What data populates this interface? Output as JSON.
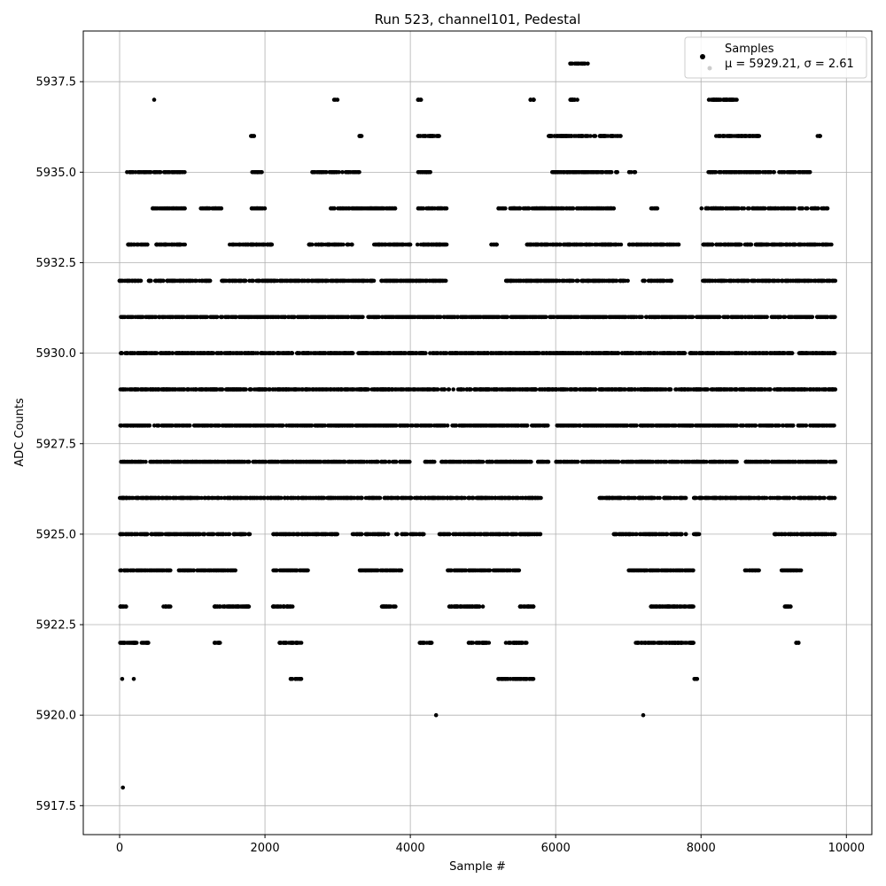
{
  "chart_data": {
    "type": "scatter",
    "title": "Run 523, channel101, Pedestal",
    "xlabel": "Sample #",
    "ylabel": "ADC Counts",
    "xlim": [
      -500,
      10350
    ],
    "ylim": [
      5916.7,
      5938.9
    ],
    "xticks": [
      0,
      2000,
      4000,
      6000,
      8000,
      10000
    ],
    "yticks": [
      5917.5,
      5920.0,
      5922.5,
      5925.0,
      5927.5,
      5930.0,
      5932.5,
      5935.0,
      5937.5
    ],
    "xtick_labels": [
      "0",
      "2000",
      "4000",
      "6000",
      "8000",
      "10000"
    ],
    "ytick_labels": [
      "5917.5",
      "5920.0",
      "5922.5",
      "5925.0",
      "5927.5",
      "5930.0",
      "5932.5",
      "5935.0",
      "5937.5"
    ],
    "grid": true,
    "legend": {
      "position": "top-right",
      "entries": [
        {
          "label": "Samples",
          "marker": "dot",
          "color": "#000000"
        },
        {
          "label": "μ = 5929.21, σ = 2.61",
          "marker": "none",
          "color": "#000000"
        }
      ]
    },
    "series": [
      {
        "name": "Samples",
        "color": "#000000",
        "points_summary": "approximately 10000 samples at integer ADC levels; listed below are representative runs per level",
        "level_runs": [
          {
            "y": 5931,
            "ranges": [
              [
                0,
                1000
              ],
              [
                1000,
                1500
              ],
              [
                1500,
                2600
              ],
              [
                2600,
                3000
              ],
              [
                3000,
                4600
              ],
              [
                4600,
                5800
              ],
              [
                5800,
                6800
              ],
              [
                6800,
                7100
              ],
              [
                7100,
                8100
              ],
              [
                8100,
                9850
              ]
            ]
          },
          {
            "y": 5930,
            "ranges": [
              [
                0,
                9850
              ]
            ]
          },
          {
            "y": 5929,
            "ranges": [
              [
                0,
                9850
              ]
            ]
          },
          {
            "y": 5928,
            "ranges": [
              [
                0,
                2900
              ],
              [
                2900,
                5900
              ],
              [
                6000,
                9850
              ]
            ]
          },
          {
            "y": 5927,
            "ranges": [
              [
                0,
                1800
              ],
              [
                1800,
                4000
              ],
              [
                4200,
                5900
              ],
              [
                6000,
                8500
              ],
              [
                8600,
                9850
              ]
            ]
          },
          {
            "y": 5926,
            "ranges": [
              [
                0,
                2100
              ],
              [
                2100,
                5800
              ],
              [
                6600,
                7800
              ],
              [
                7900,
                9850
              ]
            ]
          },
          {
            "y": 5932,
            "ranges": [
              [
                0,
                300
              ],
              [
                400,
                1250
              ],
              [
                1400,
                2500
              ],
              [
                2500,
                3500
              ],
              [
                3600,
                4500
              ],
              [
                5300,
                7000
              ],
              [
                7200,
                7600
              ],
              [
                8000,
                9850
              ]
            ]
          },
          {
            "y": 5925,
            "ranges": [
              [
                0,
                1800
              ],
              [
                2100,
                3000
              ],
              [
                3200,
                3700
              ],
              [
                3800,
                4200
              ],
              [
                4400,
                5800
              ],
              [
                6800,
                7800
              ],
              [
                7900,
                8000
              ],
              [
                9000,
                9850
              ]
            ]
          },
          {
            "y": 5933,
            "ranges": [
              [
                100,
                400
              ],
              [
                500,
                900
              ],
              [
                1500,
                2100
              ],
              [
                2600,
                3200
              ],
              [
                3500,
                4500
              ],
              [
                5100,
                5200
              ],
              [
                5600,
                6900
              ],
              [
                7000,
                7700
              ],
              [
                8000,
                9850
              ]
            ]
          },
          {
            "y": 5934,
            "ranges": [
              [
                450,
                900
              ],
              [
                1100,
                1400
              ],
              [
                1800,
                2000
              ],
              [
                2900,
                3800
              ],
              [
                4100,
                4500
              ],
              [
                5200,
                6800
              ],
              [
                7300,
                7400
              ],
              [
                8000,
                9750
              ]
            ]
          },
          {
            "y": 5924,
            "ranges": [
              [
                0,
                700
              ],
              [
                800,
                1600
              ],
              [
                2100,
                2600
              ],
              [
                3300,
                3900
              ],
              [
                4500,
                5500
              ],
              [
                7000,
                7900
              ],
              [
                8600,
                8800
              ],
              [
                9100,
                9400
              ]
            ]
          },
          {
            "y": 5923,
            "ranges": [
              [
                0,
                100
              ],
              [
                600,
                700
              ],
              [
                1300,
                1800
              ],
              [
                2100,
                2400
              ],
              [
                3600,
                3800
              ],
              [
                4500,
                5000
              ],
              [
                5500,
                5700
              ],
              [
                7300,
                7900
              ],
              [
                9150,
                9250
              ]
            ]
          },
          {
            "y": 5922,
            "ranges": [
              [
                0,
                400
              ],
              [
                1300,
                1400
              ],
              [
                2200,
                2500
              ],
              [
                4100,
                4300
              ],
              [
                4800,
                5100
              ],
              [
                5300,
                5600
              ],
              [
                7100,
                7900
              ],
              [
                9300,
                9350
              ]
            ]
          },
          {
            "y": 5935,
            "ranges": [
              [
                100,
                900
              ],
              [
                1800,
                2000
              ],
              [
                2650,
                3300
              ],
              [
                4100,
                4300
              ],
              [
                5950,
                6850
              ],
              [
                7000,
                7100
              ],
              [
                8100,
                9500
              ]
            ]
          },
          {
            "y": 5936,
            "ranges": [
              [
                1800,
                1850
              ],
              [
                3300,
                3350
              ],
              [
                4100,
                4400
              ],
              [
                5900,
                6900
              ],
              [
                8200,
                8800
              ],
              [
                9600,
                9650
              ]
            ]
          },
          {
            "y": 5937,
            "ranges": [
              [
                470,
                480
              ],
              [
                2950,
                3000
              ],
              [
                4100,
                4150
              ],
              [
                5650,
                5700
              ],
              [
                6200,
                6300
              ],
              [
                8100,
                8500
              ]
            ]
          },
          {
            "y": 5938,
            "ranges": [
              [
                6200,
                6450
              ]
            ]
          },
          {
            "y": 5921,
            "ranges": [
              [
                30,
                40
              ],
              [
                190,
                200
              ],
              [
                2350,
                2500
              ],
              [
                5200,
                5700
              ],
              [
                7900,
                7950
              ]
            ]
          },
          {
            "y": 5920,
            "ranges": [
              [
                4350,
                4360
              ],
              [
                7200,
                7210
              ]
            ]
          },
          {
            "y": 5918,
            "ranges": [
              [
                40,
                50
              ]
            ]
          }
        ]
      }
    ]
  }
}
